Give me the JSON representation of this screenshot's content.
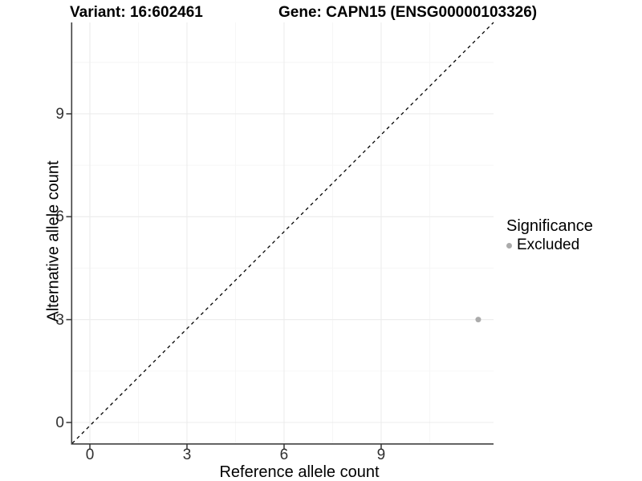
{
  "header": {
    "variant_title": "Variant: 16:602461",
    "gene_title": "Gene: CAPN15 (ENSG00000103326)"
  },
  "chart_data": {
    "type": "scatter",
    "title": "Variant: 16:602461 / Gene: CAPN15 (ENSG00000103326)",
    "xlabel": "Reference allele count",
    "ylabel": "Alternative allele count",
    "x_ticks": [
      0,
      3,
      6,
      9
    ],
    "y_ticks": [
      0,
      3,
      6,
      9
    ],
    "x_minor_ticks": [
      1.5,
      4.5,
      7.5,
      10.5
    ],
    "y_minor_ticks": [
      1.5,
      4.5,
      7.5,
      10.5
    ],
    "xlim": [
      -0.6,
      12.6
    ],
    "ylim": [
      -0.55,
      11.55
    ],
    "grid": true,
    "legend_position": "right",
    "identity_line": {
      "slope": 1,
      "intercept": 0,
      "style": "dashed",
      "color": "#000000"
    },
    "series": [
      {
        "name": "Excluded",
        "color": "#ababab",
        "points": [
          {
            "x": 12,
            "y": 3
          }
        ]
      }
    ],
    "legend": {
      "title": "Significance",
      "items": [
        {
          "label": "Excluded",
          "color": "#ababab",
          "marker": "dot"
        }
      ]
    },
    "colors": {
      "background": "#ffffff",
      "grid_major": "#ececec",
      "grid_minor": "#f6f6f6",
      "axis": "#404040",
      "tick_label": "#303030"
    }
  }
}
